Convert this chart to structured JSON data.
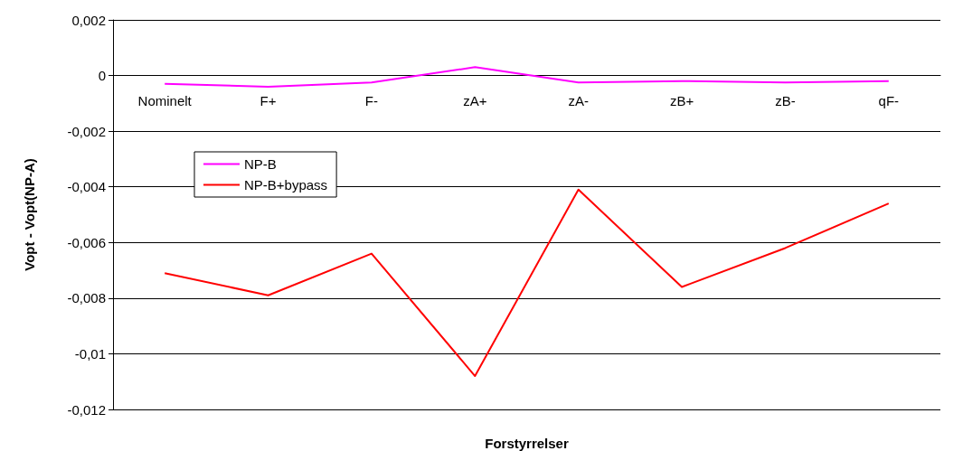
{
  "chart_data": {
    "type": "line",
    "xlabel": "Forstyrrelser",
    "ylabel": "Vopt - Vopt(NP-A)",
    "categories": [
      "Nominelt",
      "F+",
      "F-",
      "zA+",
      "zA-",
      "zB+",
      "zB-",
      "qF-"
    ],
    "series": [
      {
        "name": "NP-B",
        "color": "#ff00ff",
        "values": [
          -0.0003,
          -0.0004,
          -0.00025,
          0.0003,
          -0.00025,
          -0.0002,
          -0.00025,
          -0.0002
        ]
      },
      {
        "name": "NP-B+bypass",
        "color": "#ff0000",
        "values": [
          -0.0071,
          -0.0079,
          -0.0064,
          -0.0108,
          -0.0041,
          -0.0076,
          -0.0062,
          -0.0046
        ]
      }
    ],
    "ylim": [
      -0.012,
      0.002
    ],
    "yticks": [
      {
        "value": -0.012,
        "label": "-0,012"
      },
      {
        "value": -0.01,
        "label": "-0,01"
      },
      {
        "value": -0.008,
        "label": "-0,008"
      },
      {
        "value": -0.006,
        "label": "-0,006"
      },
      {
        "value": -0.004,
        "label": "-0,004"
      },
      {
        "value": -0.002,
        "label": "-0,002"
      },
      {
        "value": 0,
        "label": "0"
      },
      {
        "value": 0.002,
        "label": "0,002"
      }
    ],
    "grid": "y",
    "legend": "left",
    "marker": "none",
    "line_style": "solid"
  }
}
